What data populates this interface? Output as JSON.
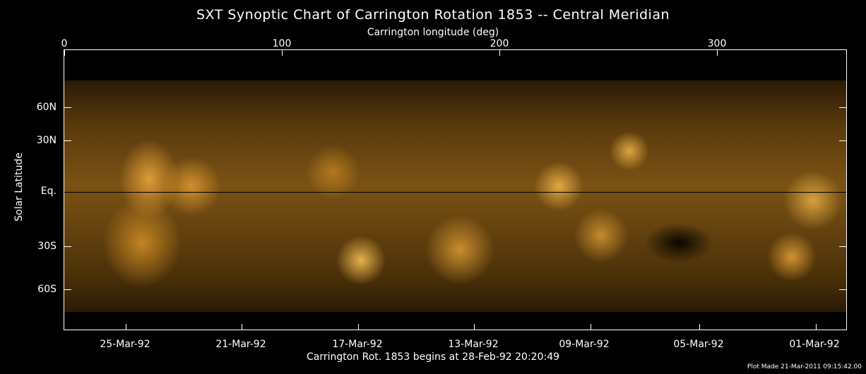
{
  "title": "SXT Synoptic Chart of Carrington Rotation 1853 -- Central Meridian",
  "top_axis": {
    "label": "Carrington longitude (deg)",
    "ticks": [
      "0",
      "100",
      "200",
      "300"
    ]
  },
  "left_axis": {
    "label": "Solar Latitude",
    "ticks": [
      "60N",
      "30N",
      "Eq.",
      "30S",
      "60S"
    ]
  },
  "bottom_axis": {
    "ticks": [
      "25-Mar-92",
      "21-Mar-92",
      "17-Mar-92",
      "13-Mar-92",
      "09-Mar-92",
      "05-Mar-92",
      "01-Mar-92"
    ]
  },
  "caption": "Carrington Rot. 1853 begins at 28-Feb-92 20:20:49",
  "plot_made": "Plot Made 21-Mar-2011 09:15:42.00",
  "colors": {
    "map_base": "#7a5214",
    "bright": "#f0aa3c",
    "frame": "#ffffff"
  }
}
